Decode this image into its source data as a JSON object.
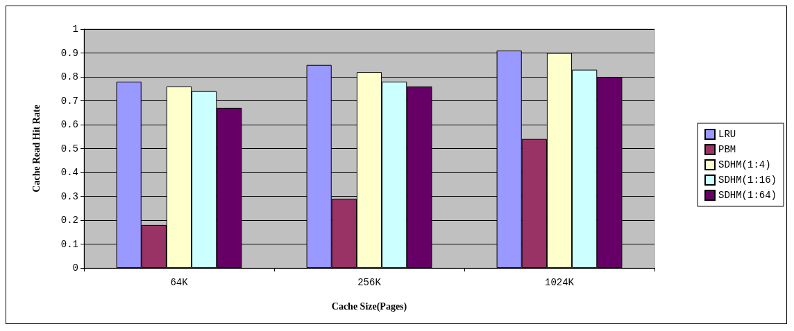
{
  "chart_data": {
    "type": "bar",
    "xlabel": "Cache Size(Pages)",
    "ylabel": "Cache Read Hit Rate",
    "categories": [
      "64K",
      "256K",
      "1024K"
    ],
    "series": [
      {
        "name": "LRU",
        "color": "#9999ff",
        "values": [
          0.78,
          0.85,
          0.91
        ]
      },
      {
        "name": "PBM",
        "color": "#993366",
        "values": [
          0.18,
          0.29,
          0.54
        ]
      },
      {
        "name": "SDHM(1:4)",
        "color": "#ffffcc",
        "values": [
          0.76,
          0.82,
          0.9
        ]
      },
      {
        "name": "SDHM(1:16)",
        "color": "#ccffff",
        "values": [
          0.74,
          0.78,
          0.83
        ]
      },
      {
        "name": "SDHM(1:64)",
        "color": "#660066",
        "values": [
          0.67,
          0.76,
          0.8
        ]
      }
    ],
    "ylim": [
      0,
      1
    ],
    "yticks": [
      0,
      0.1,
      0.2,
      0.3,
      0.4,
      0.5,
      0.6,
      0.7,
      0.8,
      0.9,
      1
    ],
    "grid": "y",
    "legend": "right"
  }
}
